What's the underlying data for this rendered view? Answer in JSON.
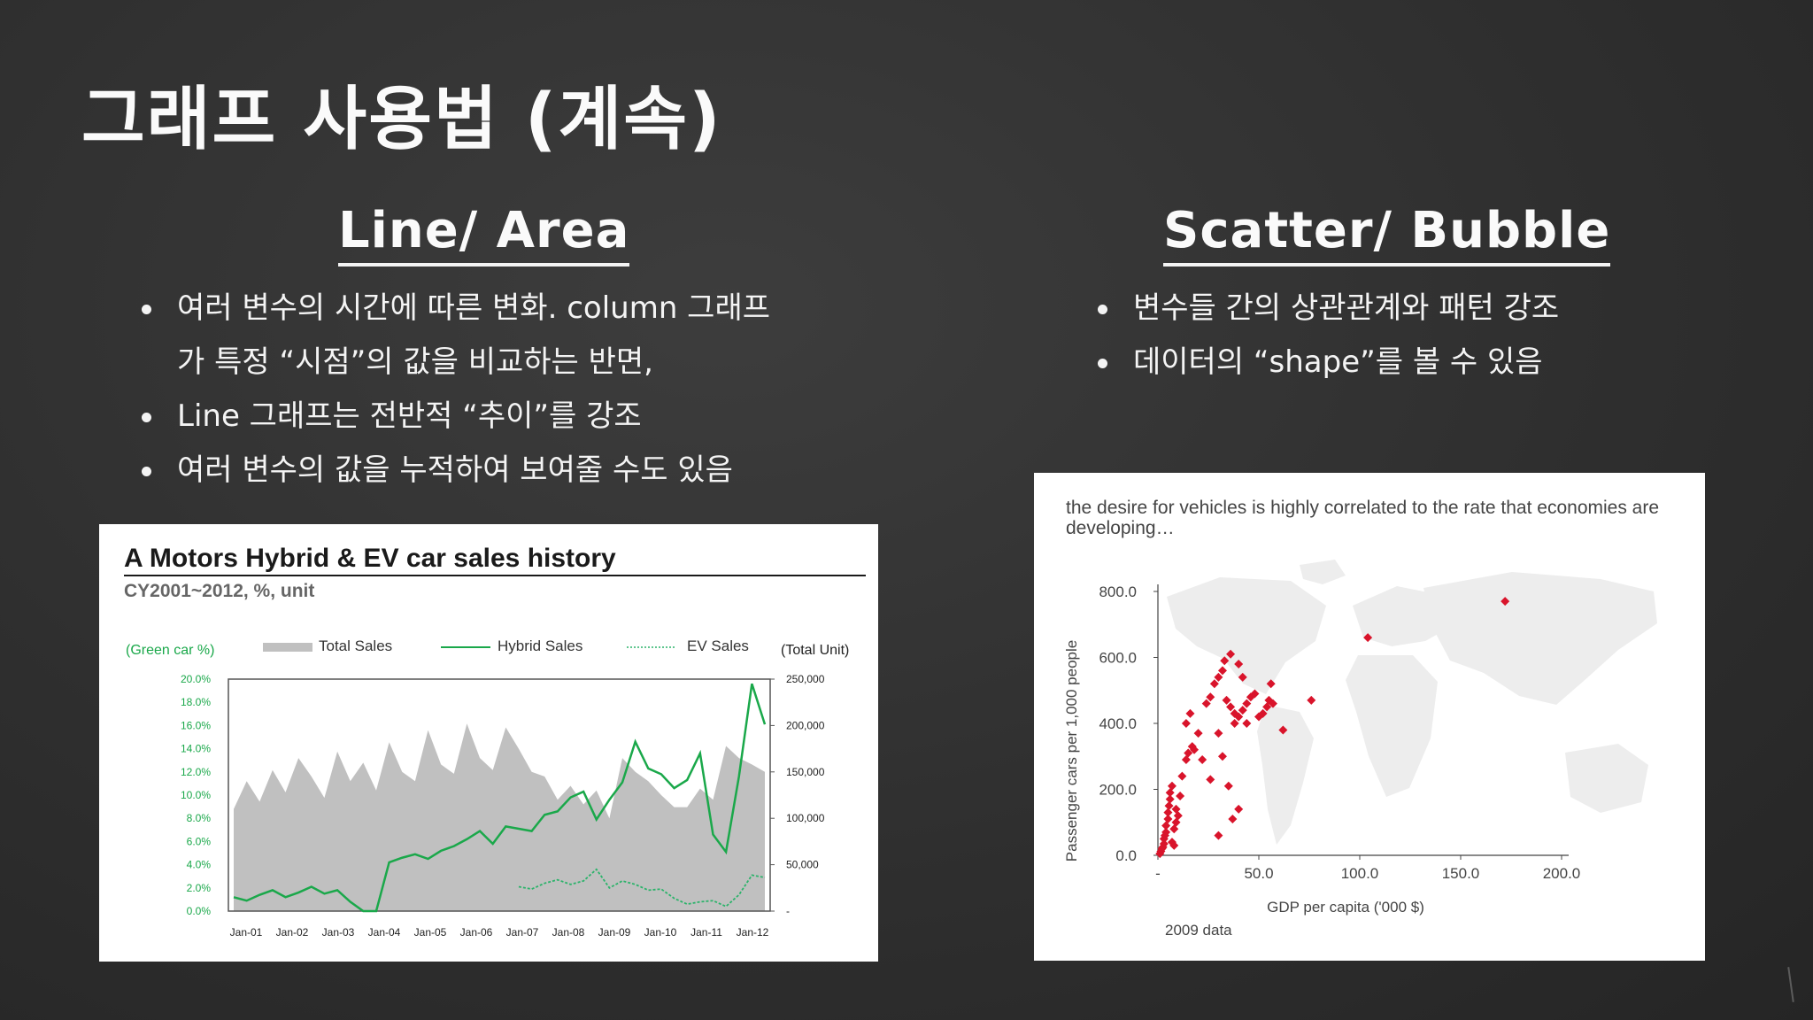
{
  "slide": {
    "title": "그래프 사용법 (계속)",
    "left_heading": "Line/ Area",
    "right_heading": "Scatter/ Bubble",
    "left_bullets": [
      "여러 변수의 시간에 따른 변화. column 그래프",
      "가 특정 “시점”의 값을 비교하는 반면,",
      "Line 그래프는 전반적 “추이”를 강조",
      "여러 변수의 값을 누적하여 보여줄 수도 있음"
    ],
    "right_bullets": [
      "변수들 간의 상관관계와 패턴 강조",
      "데이터의 “shape”를 볼 수 있음"
    ]
  },
  "colors": {
    "background": "#2f2f2f",
    "total_sales": "#c0c0c0",
    "hybrid_sales": "#1aa84a",
    "ev_sales": "#2bb36a",
    "scatter_point": "#d9142b",
    "world_map": "#ededed"
  },
  "chart1_text": {
    "title": "A Motors Hybrid & EV car sales history",
    "subtitle": "CY2001~2012, %, unit"
  },
  "chart2_text": {
    "title": "the desire for vehicles is highly correlated to the rate that economies are developing…",
    "note": "2009 data"
  },
  "chart_data": [
    {
      "type": "area",
      "title": "A Motors Hybrid & EV car sales history",
      "subtitle": "CY2001~2012, %, unit",
      "left_axis_label": "(Green car %)",
      "right_axis_label": "(Total Unit)",
      "ylim_left": [
        0,
        20
      ],
      "ylim_right": [
        0,
        250000
      ],
      "left_ticks": [
        "20.0%",
        "18.0%",
        "16.0%",
        "14.0%",
        "12.0%",
        "10.0%",
        "8.0%",
        "6.0%",
        "4.0%",
        "2.0%",
        "0.0%"
      ],
      "right_ticks": [
        "250,000",
        "200,000",
        "150,000",
        "100,000",
        "50,000",
        "-"
      ],
      "x_ticks": [
        "Jan-01",
        "Jan-02",
        "Jan-03",
        "Jan-04",
        "Jan-05",
        "Jan-06",
        "Jan-07",
        "Jan-08",
        "Jan-09",
        "Jan-10",
        "Jan-11",
        "Jan-12"
      ],
      "legend": [
        "Total Sales",
        "Hybrid Sales",
        "EV Sales"
      ],
      "series": [
        {
          "name": "Total Sales",
          "axis": "right",
          "values": [
            110000,
            140000,
            118000,
            152000,
            128000,
            165000,
            145000,
            122000,
            172000,
            140000,
            160000,
            130000,
            182000,
            150000,
            140000,
            195000,
            158000,
            148000,
            202000,
            165000,
            152000,
            198000,
            175000,
            150000,
            145000,
            120000,
            135000,
            115000,
            130000,
            100000,
            165000,
            150000,
            140000,
            125000,
            112000,
            112000,
            132000,
            120000,
            178000,
            165000,
            158000,
            150000
          ]
        },
        {
          "name": "Hybrid Sales",
          "axis": "left",
          "values": [
            1.2,
            0.9,
            1.4,
            1.8,
            1.2,
            1.6,
            2.1,
            1.5,
            1.8,
            0.8,
            0,
            0,
            4.2,
            4.6,
            4.9,
            4.5,
            5.2,
            5.6,
            6.2,
            6.9,
            5.8,
            7.3,
            7.1,
            6.9,
            8.3,
            8.6,
            9.8,
            10.3,
            7.9,
            9.6,
            11.1,
            14.6,
            12.3,
            11.8,
            10.6,
            11.3,
            13.6,
            6.6,
            5.1,
            11.6,
            19.6,
            16.1
          ]
        },
        {
          "name": "EV Sales",
          "axis": "left",
          "values": [
            0,
            0,
            0,
            0,
            0,
            0,
            0,
            0,
            0,
            0,
            0,
            0,
            0,
            0,
            0,
            0,
            0,
            0,
            0,
            0,
            0,
            0,
            2.1,
            1.9,
            2.4,
            2.7,
            2.3,
            2.6,
            3.6,
            2.0,
            2.6,
            2.3,
            1.8,
            1.9,
            1.1,
            0.6,
            0.8,
            0.9,
            0.4,
            1.4,
            3.1,
            2.9
          ]
        }
      ]
    },
    {
      "type": "scatter",
      "title": "the desire for vehicles is highly correlated to the rate that economies are developing…",
      "xlabel": "GDP per capita ('000 $)",
      "ylabel": "Passenger cars per 1,000 people",
      "xlim": [
        0,
        200
      ],
      "ylim": [
        0,
        800
      ],
      "x_ticks": [
        "-",
        "50.0",
        "100.0",
        "150.0",
        "200.0"
      ],
      "y_ticks": [
        "0.0",
        "200.0",
        "400.0",
        "600.0",
        "800.0"
      ],
      "note": "2009 data",
      "points": [
        {
          "x": 1,
          "y": 5
        },
        {
          "x": 1.5,
          "y": 12
        },
        {
          "x": 2,
          "y": 20
        },
        {
          "x": 2.5,
          "y": 25
        },
        {
          "x": 3,
          "y": 35
        },
        {
          "x": 3,
          "y": 50
        },
        {
          "x": 3.5,
          "y": 60
        },
        {
          "x": 4,
          "y": 70
        },
        {
          "x": 4,
          "y": 90
        },
        {
          "x": 5,
          "y": 110
        },
        {
          "x": 5,
          "y": 130
        },
        {
          "x": 5.5,
          "y": 150
        },
        {
          "x": 6,
          "y": 170
        },
        {
          "x": 6,
          "y": 190
        },
        {
          "x": 7,
          "y": 210
        },
        {
          "x": 7,
          "y": 40
        },
        {
          "x": 8,
          "y": 30
        },
        {
          "x": 8,
          "y": 80
        },
        {
          "x": 9,
          "y": 100
        },
        {
          "x": 9,
          "y": 140
        },
        {
          "x": 10,
          "y": 120
        },
        {
          "x": 11,
          "y": 180
        },
        {
          "x": 12,
          "y": 240
        },
        {
          "x": 14,
          "y": 290
        },
        {
          "x": 15,
          "y": 310
        },
        {
          "x": 14,
          "y": 400
        },
        {
          "x": 16,
          "y": 430
        },
        {
          "x": 17,
          "y": 330
        },
        {
          "x": 18,
          "y": 320
        },
        {
          "x": 20,
          "y": 370
        },
        {
          "x": 22,
          "y": 290
        },
        {
          "x": 24,
          "y": 460
        },
        {
          "x": 26,
          "y": 480
        },
        {
          "x": 28,
          "y": 520
        },
        {
          "x": 30,
          "y": 540
        },
        {
          "x": 32,
          "y": 560
        },
        {
          "x": 33,
          "y": 590
        },
        {
          "x": 36,
          "y": 610
        },
        {
          "x": 40,
          "y": 580
        },
        {
          "x": 42,
          "y": 540
        },
        {
          "x": 34,
          "y": 470
        },
        {
          "x": 36,
          "y": 450
        },
        {
          "x": 38,
          "y": 430
        },
        {
          "x": 40,
          "y": 420
        },
        {
          "x": 42,
          "y": 440
        },
        {
          "x": 44,
          "y": 460
        },
        {
          "x": 46,
          "y": 480
        },
        {
          "x": 48,
          "y": 490
        },
        {
          "x": 50,
          "y": 420
        },
        {
          "x": 52,
          "y": 430
        },
        {
          "x": 54,
          "y": 450
        },
        {
          "x": 56,
          "y": 520
        },
        {
          "x": 44,
          "y": 400
        },
        {
          "x": 38,
          "y": 400
        },
        {
          "x": 30,
          "y": 370
        },
        {
          "x": 32,
          "y": 300
        },
        {
          "x": 26,
          "y": 230
        },
        {
          "x": 35,
          "y": 210
        },
        {
          "x": 40,
          "y": 140
        },
        {
          "x": 30,
          "y": 60
        },
        {
          "x": 37,
          "y": 110
        },
        {
          "x": 55,
          "y": 470
        },
        {
          "x": 57,
          "y": 460
        },
        {
          "x": 62,
          "y": 380
        },
        {
          "x": 76,
          "y": 470
        },
        {
          "x": 104,
          "y": 660
        },
        {
          "x": 172,
          "y": 770
        }
      ]
    }
  ]
}
